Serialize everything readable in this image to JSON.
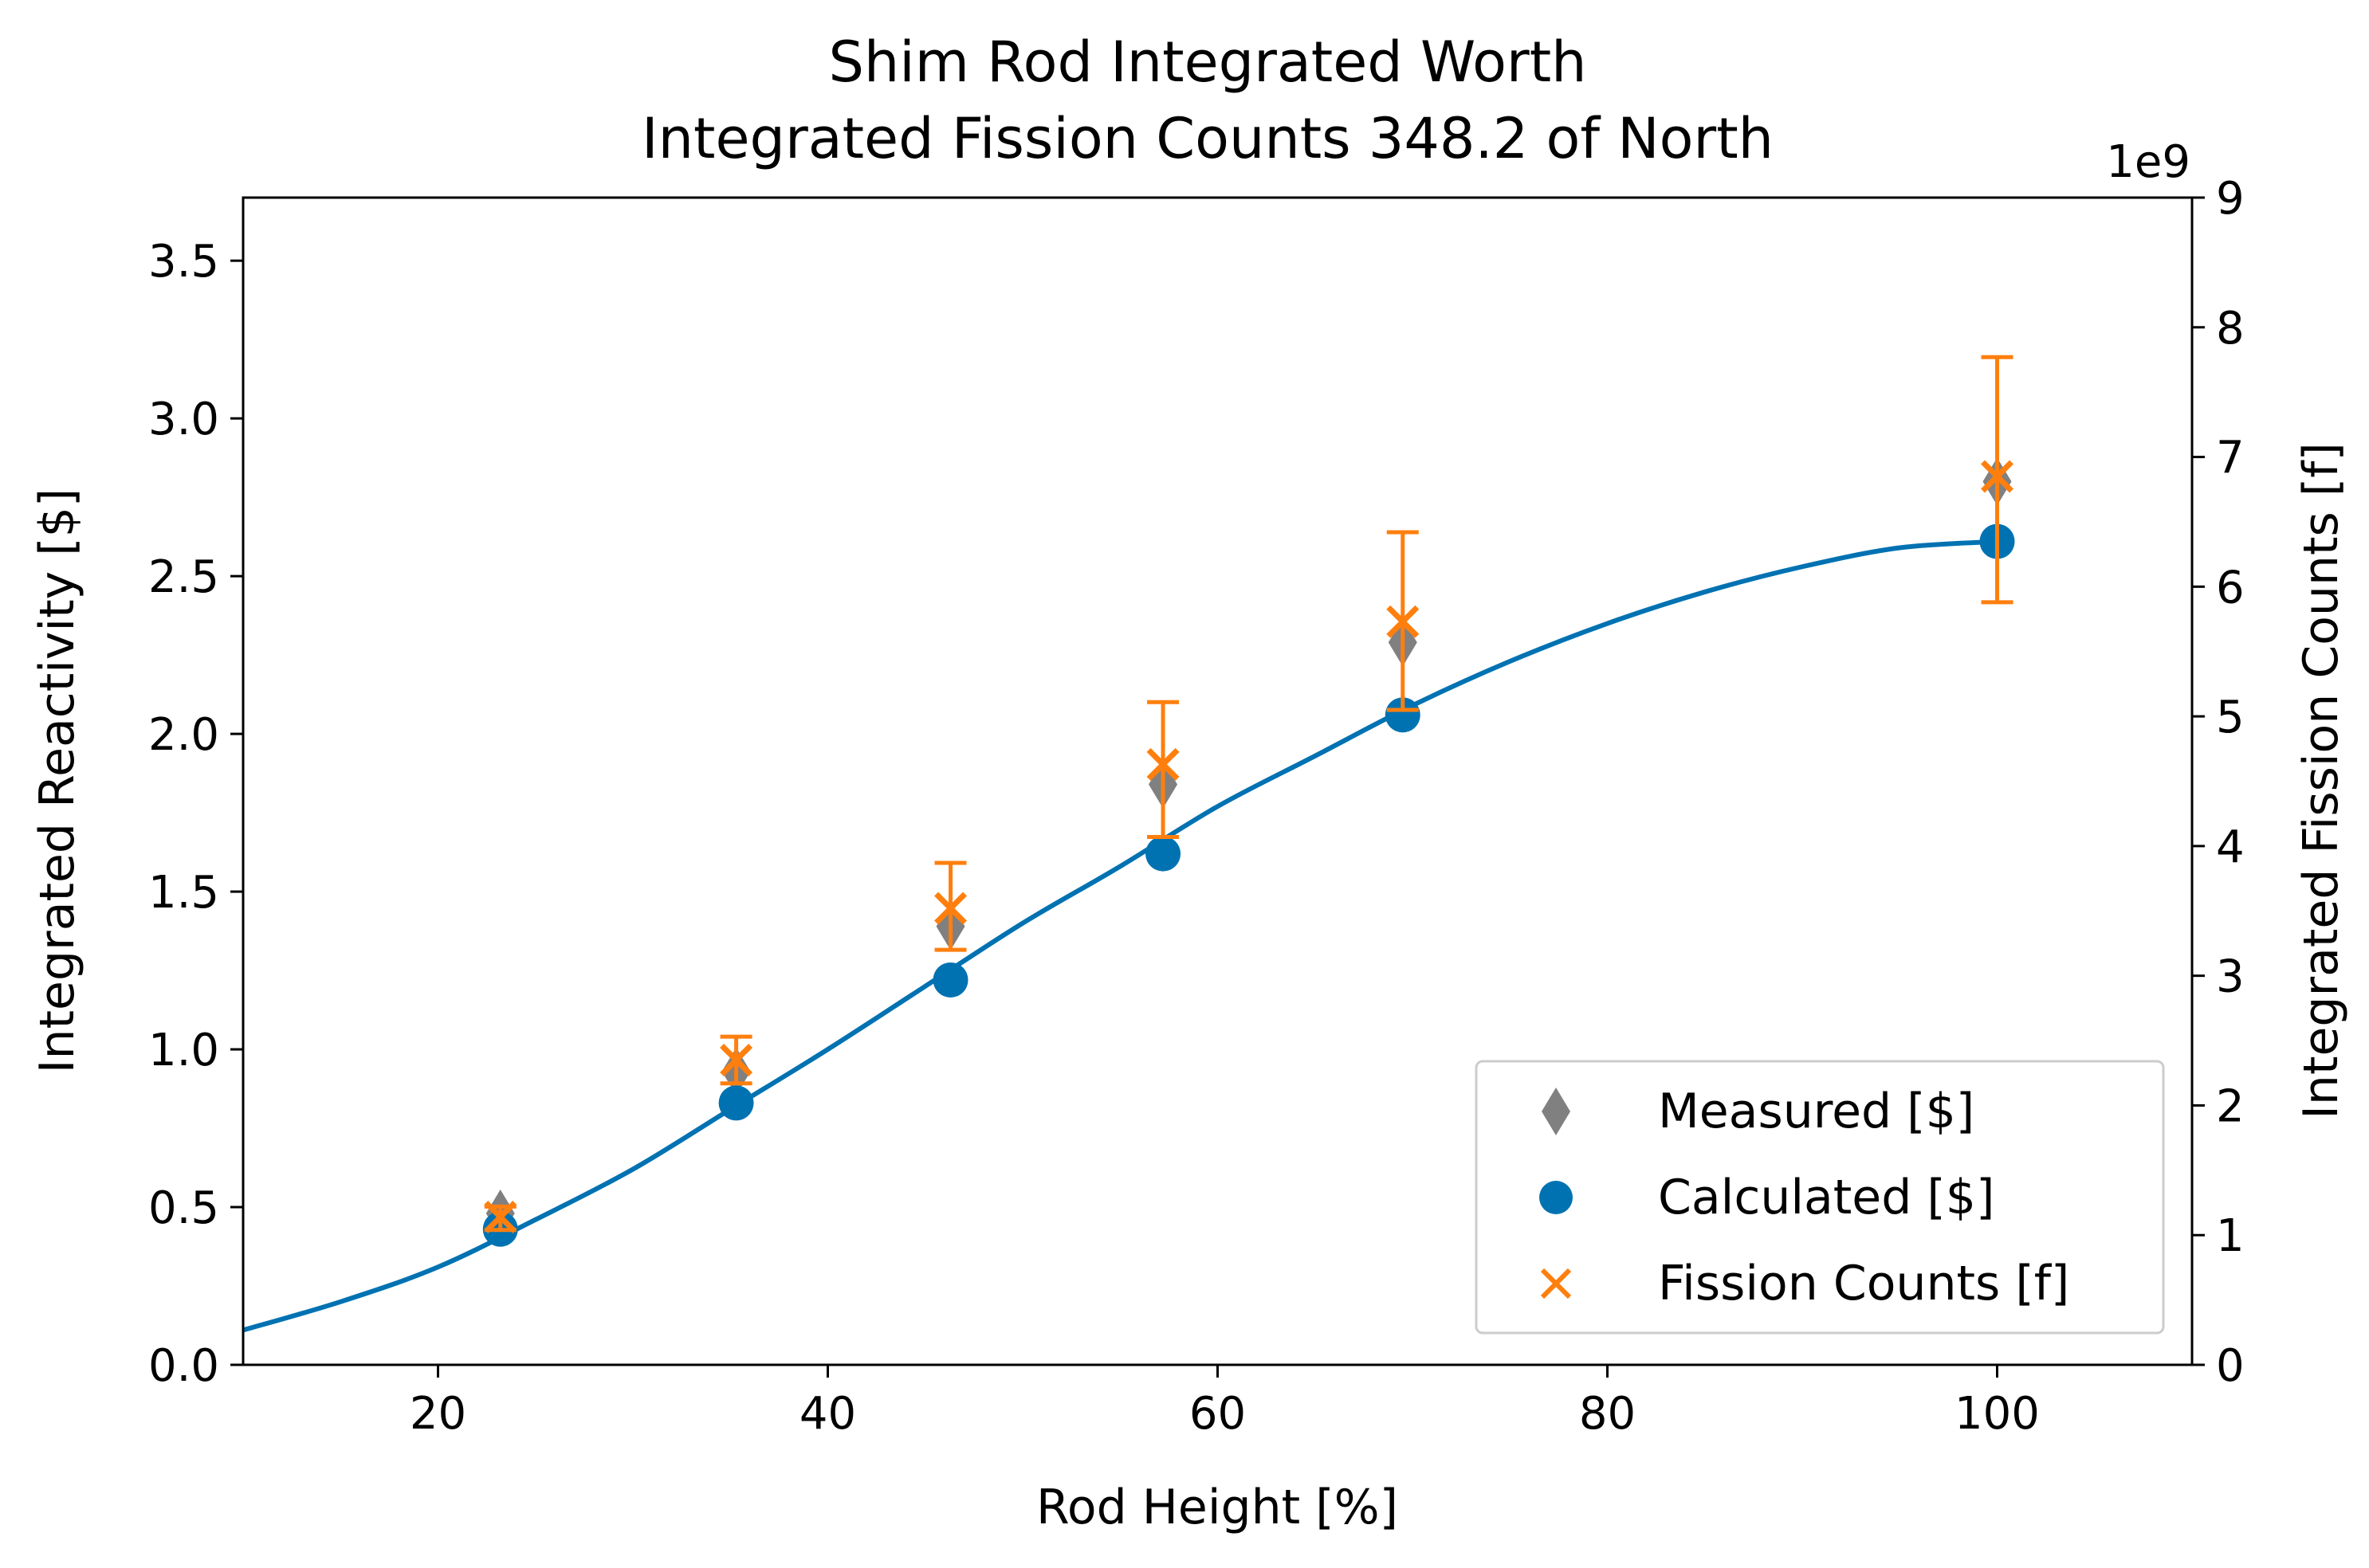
{
  "chart_data": {
    "type": "scatter",
    "title": "Shim Rod Integrated Worth",
    "subtitle": "Integrated Fission Counts 348.2 of North",
    "xlabel": "Rod Height [%]",
    "ylabel": "Integrated Reactivity [$]",
    "y2label": "Integrated Fission Counts [f]",
    "y2_offset_label": "1e9",
    "xlim": [
      10,
      110
    ],
    "ylim": [
      0,
      3.7
    ],
    "y2lim": [
      0,
      9
    ],
    "x_ticks": [
      20,
      40,
      60,
      80,
      100
    ],
    "y_ticks": [
      0.0,
      0.5,
      1.0,
      1.5,
      2.0,
      2.5,
      3.0,
      3.5
    ],
    "y2_ticks": [
      0,
      1,
      2,
      3,
      4,
      5,
      6,
      7,
      8,
      9
    ],
    "grid": false,
    "legend_position": "lower-right",
    "colors": {
      "measured": "#808080",
      "calculated": "#0072b2",
      "fission": "#ff7f0e",
      "fit_curve": "#0072b2"
    },
    "series": [
      {
        "name": "Measured [$]",
        "marker": "diamond",
        "axis": "left",
        "x": [
          23.2,
          35.3,
          46.3,
          57.2,
          69.5,
          100.0
        ],
        "y": [
          0.48,
          0.93,
          1.39,
          1.84,
          2.29,
          2.8
        ]
      },
      {
        "name": "Calculated [$]",
        "marker": "circle",
        "axis": "left",
        "x": [
          23.2,
          35.3,
          46.3,
          57.2,
          69.5,
          100.0
        ],
        "y": [
          0.43,
          0.83,
          1.22,
          1.62,
          2.06,
          2.61
        ]
      },
      {
        "name": "Fission Counts [f]",
        "marker": "x",
        "axis": "right",
        "x": [
          23.2,
          35.3,
          46.3,
          57.2,
          69.5,
          100.0
        ],
        "y": [
          1.14,
          2.35,
          3.52,
          4.63,
          5.73,
          6.85
        ],
        "err_low": [
          1.04,
          2.17,
          3.2,
          4.07,
          5.05,
          5.88
        ],
        "err_high": [
          1.22,
          2.53,
          3.87,
          5.11,
          6.42,
          7.77
        ]
      }
    ],
    "fit_curve": {
      "x": [
        10,
        15,
        20,
        25,
        30,
        35,
        40,
        45,
        50,
        55,
        60,
        65,
        70,
        75,
        80,
        85,
        90,
        95,
        100
      ],
      "y": [
        0.11,
        0.2,
        0.31,
        0.46,
        0.62,
        0.81,
        1.0,
        1.2,
        1.4,
        1.58,
        1.77,
        1.93,
        2.09,
        2.23,
        2.35,
        2.45,
        2.53,
        2.59,
        2.61
      ]
    }
  }
}
